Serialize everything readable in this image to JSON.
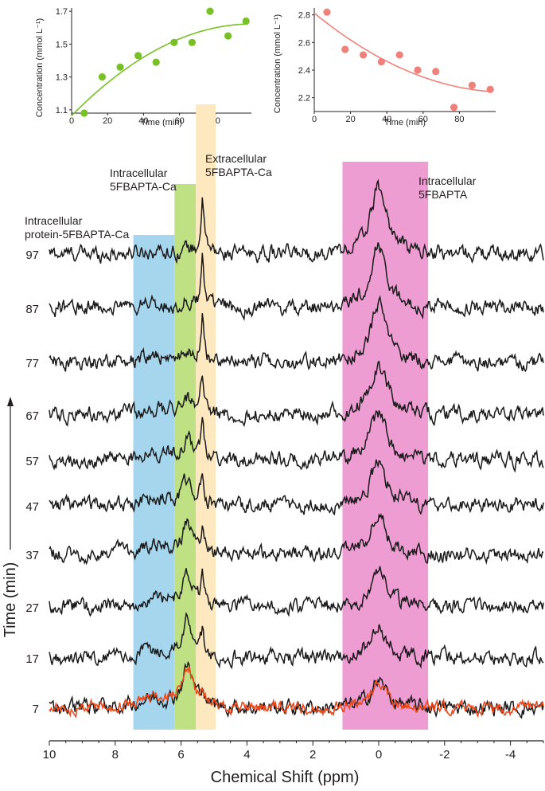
{
  "chart_data": [
    {
      "type": "scatter",
      "xlabel": "Time (min)",
      "ylabel": "Concentration (mmol L⁻¹)",
      "xlim": [
        0,
        100
      ],
      "ylim": [
        1.08,
        1.72
      ],
      "x_ticks": [
        0,
        20,
        40,
        60,
        80
      ],
      "y_ticks": [
        1.1,
        1.3,
        1.5,
        1.7
      ],
      "color": "#77c025",
      "fit": "quadratic",
      "points": [
        {
          "x": 7,
          "y": 1.08
        },
        {
          "x": 17,
          "y": 1.3
        },
        {
          "x": 27,
          "y": 1.36
        },
        {
          "x": 37,
          "y": 1.43
        },
        {
          "x": 47,
          "y": 1.39
        },
        {
          "x": 57,
          "y": 1.51
        },
        {
          "x": 67,
          "y": 1.51
        },
        {
          "x": 77,
          "y": 1.7
        },
        {
          "x": 87,
          "y": 1.55
        },
        {
          "x": 97,
          "y": 1.64
        }
      ]
    },
    {
      "type": "scatter",
      "xlabel": "Time (min)",
      "ylabel": "Concentration (mmol L⁻¹)",
      "xlim": [
        0,
        100
      ],
      "ylim": [
        2.1,
        2.85
      ],
      "x_ticks": [
        0,
        20,
        40,
        60,
        80
      ],
      "y_ticks": [
        2.2,
        2.4,
        2.6,
        2.8
      ],
      "color": "#f0807a",
      "fit": "quadratic",
      "points": [
        {
          "x": 7,
          "y": 2.82
        },
        {
          "x": 17,
          "y": 2.55
        },
        {
          "x": 27,
          "y": 2.51
        },
        {
          "x": 37,
          "y": 2.46
        },
        {
          "x": 47,
          "y": 2.51
        },
        {
          "x": 57,
          "y": 2.4
        },
        {
          "x": 67,
          "y": 2.39
        },
        {
          "x": 77,
          "y": 2.13
        },
        {
          "x": 87,
          "y": 2.29
        },
        {
          "x": 97,
          "y": 2.26
        }
      ]
    },
    {
      "type": "line",
      "xlabel": "Chemical Shift (ppm)",
      "ylabel": "Time (min)",
      "xlim": [
        10,
        -5
      ],
      "x_ticks": [
        10,
        8,
        6,
        4,
        2,
        0,
        -2,
        -4
      ],
      "x_tick_labels": [
        "10",
        "8",
        "6",
        "4",
        "2",
        "0",
        "-2",
        "-4"
      ],
      "time_labels": [
        "97",
        "87",
        "77",
        "67",
        "57",
        "47",
        "37",
        "27",
        "17",
        "7"
      ],
      "regions": [
        {
          "label": [
            "Intracellular",
            "protein-5FBAPTA-Ca"
          ],
          "from": 7.45,
          "to": 6.2,
          "color": "#a6d6ee"
        },
        {
          "label": [
            "Intracellular",
            "5FBAPTA-Ca"
          ],
          "from": 6.2,
          "to": 5.55,
          "color": "#bfe183"
        },
        {
          "label": [
            "Extracellular",
            "5FBAPTA-Ca"
          ],
          "from": 5.55,
          "to": 4.95,
          "color": "#fde8c0"
        },
        {
          "label": [
            "Intracellular",
            "5FBAPTA"
          ],
          "from": 1.1,
          "to": -1.5,
          "color": "#ee9dd3"
        }
      ],
      "peaks": [
        {
          "name": "protein-5FBAPTA-Ca",
          "shift": 6.8,
          "width": 0.6,
          "height": [
            0.25,
            0.3,
            0.35,
            0.35,
            0.5,
            0.5,
            0.55,
            0.6,
            0.6,
            0.7
          ]
        },
        {
          "name": "intracellular-5FBAPTA-Ca",
          "shift": 5.8,
          "width": 0.2,
          "height": [
            0.3,
            0.5,
            0.8,
            1.2,
            1.5,
            1.8,
            2.1,
            2.4,
            2.7,
            3.0
          ]
        },
        {
          "name": "extracellular-5FBAPTA-Ca",
          "shift": 5.35,
          "width": 0.06,
          "height": [
            4.0,
            3.7,
            3.4,
            3.1,
            2.8,
            2.5,
            2.2,
            1.9,
            1.6,
            1.3
          ]
        },
        {
          "name": "intracellular-5FBAPTA",
          "shift": 0.0,
          "width": 0.3,
          "height": [
            5.0,
            4.6,
            4.2,
            3.8,
            3.5,
            3.2,
            2.9,
            2.6,
            2.3,
            2.0
          ]
        }
      ],
      "overlay": {
        "time": "7",
        "color": "#e8491d"
      },
      "trace_color": "#1a1a1a"
    }
  ]
}
